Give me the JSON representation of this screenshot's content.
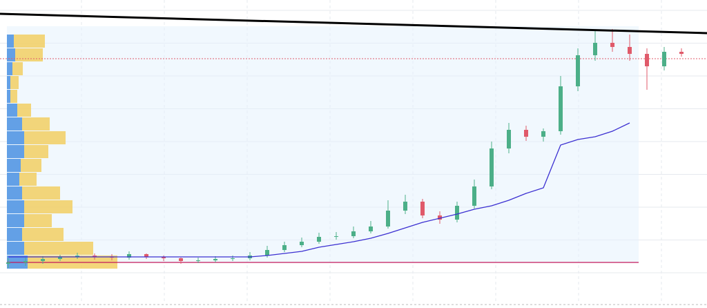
{
  "chart_data": {
    "type": "candlestick",
    "ylim": [
      0,
      400
    ],
    "up_color": "#4caf88",
    "down_color": "#e05a6a",
    "open": [
      18,
      20,
      22,
      25,
      28,
      30,
      28,
      27,
      32,
      28,
      26,
      22,
      23,
      25,
      26,
      30,
      38,
      45,
      50,
      57,
      58,
      65,
      72,
      95,
      108,
      88,
      82,
      102,
      130,
      185,
      212,
      202,
      210,
      275,
      320,
      338,
      332,
      322,
      304,
      325
    ],
    "close": [
      20,
      22,
      25,
      28,
      30,
      28,
      27,
      32,
      28,
      26,
      22,
      23,
      25,
      26,
      30,
      38,
      45,
      50,
      57,
      58,
      65,
      72,
      95,
      108,
      88,
      82,
      102,
      130,
      185,
      212,
      202,
      210,
      275,
      320,
      338,
      332,
      322,
      304,
      325,
      322
    ],
    "high": [
      26,
      27,
      29,
      31,
      34,
      33,
      32,
      36,
      33,
      30,
      27,
      27,
      29,
      30,
      35,
      44,
      50,
      56,
      63,
      64,
      72,
      80,
      110,
      118,
      112,
      94,
      108,
      140,
      195,
      222,
      218,
      214,
      290,
      330,
      355,
      358,
      350,
      330,
      332,
      330
    ],
    "low": [
      12,
      15,
      18,
      22,
      25,
      24,
      23,
      24,
      25,
      22,
      18,
      19,
      20,
      22,
      23,
      27,
      35,
      42,
      47,
      53,
      55,
      62,
      69,
      90,
      84,
      76,
      78,
      98,
      126,
      178,
      196,
      195,
      205,
      268,
      312,
      325,
      312,
      270,
      298,
      318
    ],
    "vwap": {
      "color": "#3b2fd1",
      "values": [
        28,
        28,
        28,
        28,
        28,
        28,
        28,
        28,
        28,
        28,
        28,
        28,
        28,
        28,
        28,
        30,
        33,
        36,
        42,
        46,
        50,
        55,
        62,
        70,
        78,
        84,
        90,
        97,
        102,
        110,
        120,
        128,
        190,
        198,
        202,
        210,
        222,
        null,
        null,
        null
      ]
    },
    "profile": {
      "levels": [
        20,
        40,
        60,
        80,
        100,
        120,
        140,
        160,
        180,
        200,
        220,
        240,
        260,
        280,
        300,
        320,
        340
      ],
      "buy": [
        30,
        25,
        22,
        25,
        25,
        22,
        18,
        20,
        25,
        25,
        22,
        15,
        5,
        5,
        8,
        12,
        10
      ],
      "sell": [
        130,
        100,
        60,
        40,
        70,
        55,
        25,
        30,
        35,
        60,
        40,
        20,
        10,
        12,
        15,
        40,
        45
      ],
      "buy_color": "#4a90e2",
      "sell_color": "#f2cf63"
    },
    "range_box": [
      20,
      362
    ],
    "support_line": {
      "value": 20,
      "color": "#c2185b"
    },
    "dotted_line": {
      "value": 315,
      "color": "#e05a6a"
    },
    "trend_line": {
      "values": [
        380,
        352
      ],
      "color": "#000000"
    }
  }
}
